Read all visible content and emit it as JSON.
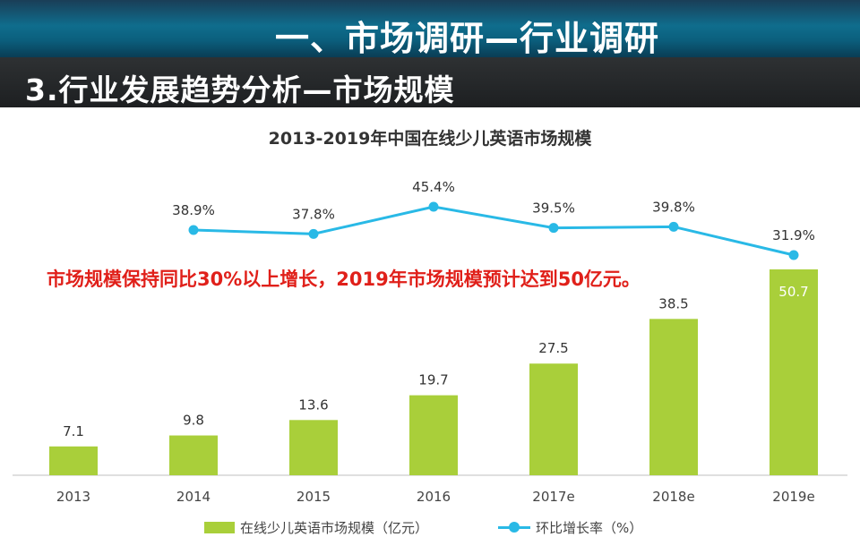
{
  "header": {
    "main_title": "一、市场调研—行业调研",
    "sub_title": "3.行业发展趋势分析—市场规模"
  },
  "annotation": "市场规模保持同比30%以上增长，2019年市场规模预计达到50亿元。",
  "colors": {
    "bar": "#a9cf3a",
    "line": "#29b9e6",
    "annotation": "#e0201a"
  },
  "chart_data": {
    "type": "bar",
    "title": "2013-2019年中国在线少儿英语市场规模",
    "categories": [
      "2013",
      "2014",
      "2015",
      "2016",
      "2017e",
      "2018e",
      "2019e"
    ],
    "series": [
      {
        "name": "在线少儿英语市场规模（亿元）",
        "type": "bar",
        "values": [
          7.1,
          9.8,
          13.6,
          19.7,
          27.5,
          38.5,
          50.7
        ],
        "labels": [
          "7.1",
          "9.8",
          "13.6",
          "19.7",
          "27.5",
          "38.5",
          "50.7"
        ]
      },
      {
        "name": "环比增长率（%）",
        "type": "line",
        "values": [
          null,
          38.9,
          37.8,
          45.4,
          39.5,
          39.8,
          31.9
        ],
        "labels": [
          "",
          "38.9%",
          "37.8%",
          "45.4%",
          "39.5%",
          "39.8%",
          "31.9%"
        ]
      }
    ],
    "ylim": [
      0,
      50.7
    ],
    "y2lim": [
      31.9,
      45.4
    ],
    "grid": false,
    "legend": "bottom"
  }
}
